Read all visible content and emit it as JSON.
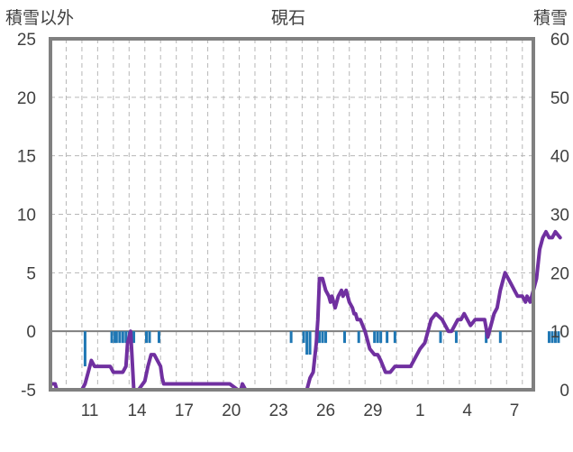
{
  "chart_data": {
    "type": "bar+line",
    "title": "硯石",
    "left_axis_label": "積雪以外",
    "right_axis_label": "積雪",
    "left_ylim": [
      -5,
      25
    ],
    "left_ticks": [
      -5,
      0,
      5,
      10,
      15,
      20,
      25
    ],
    "right_ylim": [
      0,
      60
    ],
    "right_ticks": [
      0,
      10,
      20,
      30,
      40,
      50,
      60
    ],
    "x_tick_labels": [
      "11",
      "14",
      "17",
      "20",
      "23",
      "26",
      "29",
      "1",
      "4",
      "7"
    ],
    "x_tick_day_index": [
      2,
      5,
      8,
      11,
      14,
      17,
      20,
      23,
      26,
      29
    ],
    "days": 30,
    "grid": "dashed-vertical",
    "colors": {
      "bars": "#1f77b4",
      "line": "#7030a0",
      "frame": "#808080"
    },
    "bars_series": {
      "name": "積雪以外",
      "x": [
        2.2,
        3.9,
        4.1,
        4.2,
        4.4,
        4.6,
        4.8,
        5.0,
        5.3,
        6.1,
        6.3,
        6.9,
        15.3,
        16.1,
        16.3,
        16.5,
        16.9,
        17.1,
        17.3,
        17.5,
        18.7,
        19.6,
        20.6,
        20.8,
        21.0,
        21.4,
        21.9,
        24.8,
        25.8,
        27.7,
        28.6,
        31.7,
        31.9,
        32.1,
        32.3
      ],
      "values": [
        -3.0,
        -1.0,
        -1.0,
        -1.0,
        -1.0,
        -1.0,
        -1.0,
        -1.0,
        -1.0,
        -1.0,
        -1.0,
        -1.0,
        -1.0,
        -1.0,
        -2.0,
        -2.0,
        -1.0,
        -1.0,
        -1.0,
        -1.0,
        -1.0,
        -1.0,
        -1.0,
        -1.0,
        -1.0,
        -1.0,
        -1.0,
        -1.0,
        -1.0,
        -1.0,
        -1.0,
        -1.0,
        -1.0,
        -1.0,
        -1.0
      ]
    },
    "line_series": {
      "name": "積雪",
      "axis": "right",
      "x": [
        0.0,
        0.3,
        0.4,
        2.0,
        2.2,
        2.4,
        2.6,
        2.8,
        3.0,
        3.8,
        4.0,
        4.6,
        4.8,
        4.9,
        5.1,
        5.3,
        5.6,
        6.0,
        6.2,
        6.4,
        6.6,
        6.8,
        7.0,
        7.1,
        7.2,
        10.0,
        11.4,
        11.9,
        12.0,
        12.1,
        12.2,
        12.4,
        16.3,
        16.5,
        16.7,
        16.9,
        17.0,
        17.1,
        17.3,
        17.5,
        17.7,
        17.8,
        17.9,
        18.1,
        18.3,
        18.5,
        18.6,
        18.8,
        19.0,
        19.2,
        19.3,
        19.4,
        19.5,
        19.7,
        20.0,
        20.3,
        20.6,
        20.8,
        21.0,
        21.3,
        21.6,
        21.9,
        22.2,
        22.6,
        22.9,
        23.1,
        23.3,
        23.5,
        23.8,
        24.0,
        24.2,
        24.5,
        24.9,
        25.1,
        25.3,
        25.5,
        25.7,
        25.9,
        26.1,
        26.3,
        26.5,
        26.7,
        27.0,
        27.3,
        27.6,
        27.8,
        28.0,
        28.2,
        28.4,
        28.6,
        28.8,
        28.9,
        29.1,
        29.3,
        29.5,
        29.7,
        30.0,
        30.2,
        30.3,
        30.5,
        30.7,
        30.9,
        31.1,
        31.3,
        31.5,
        31.7,
        31.9,
        32.1,
        32.4
      ],
      "values": [
        1.0,
        1.0,
        0.0,
        0.0,
        1.0,
        3.0,
        5.0,
        4.0,
        4.0,
        4.0,
        3.0,
        3.0,
        4.0,
        8.0,
        10.0,
        0.0,
        0.0,
        1.5,
        4.0,
        6.0,
        6.0,
        5.0,
        4.0,
        2.0,
        1.0,
        1.0,
        1.0,
        0.0,
        0.0,
        0.0,
        1.0,
        0.0,
        0.0,
        2.0,
        3.0,
        8.0,
        12.0,
        19.0,
        19.0,
        17.0,
        16.0,
        15.0,
        16.0,
        14.0,
        16.0,
        17.0,
        16.0,
        17.0,
        15.0,
        14.0,
        13.0,
        13.0,
        12.0,
        12.0,
        10.0,
        7.0,
        6.0,
        6.0,
        5.0,
        3.0,
        3.0,
        4.0,
        4.0,
        4.0,
        4.0,
        5.0,
        6.0,
        7.0,
        8.0,
        10.0,
        12.0,
        13.0,
        12.0,
        11.0,
        10.0,
        10.0,
        11.0,
        12.0,
        12.0,
        13.0,
        12.0,
        11.0,
        12.0,
        12.0,
        12.0,
        9.0,
        11.0,
        13.0,
        14.0,
        17.0,
        19.0,
        20.0,
        19.0,
        18.0,
        17.0,
        16.0,
        16.0,
        15.0,
        16.0,
        15.0,
        17.0,
        19.0,
        24.0,
        26.0,
        27.0,
        26.0,
        26.0,
        27.0,
        26.0
      ]
    }
  }
}
